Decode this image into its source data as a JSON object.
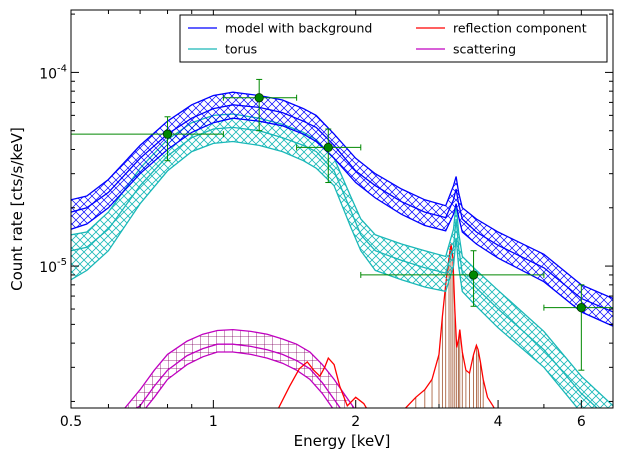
{
  "chart_data": {
    "type": "line",
    "title": "",
    "xlabel": "Energy [keV]",
    "ylabel": "Count rate [cts/s/keV]",
    "xscale": "log",
    "yscale": "log",
    "xlim": [
      0.5,
      7.0
    ],
    "ylim": [
      1.85e-06,
      0.00021
    ],
    "x_ticks": [
      {
        "value": 0.5,
        "label": "0.5"
      },
      {
        "value": 1,
        "label": "1"
      },
      {
        "value": 2,
        "label": "2"
      },
      {
        "value": 4,
        "label": "4"
      },
      {
        "value": 6,
        "label": "6"
      }
    ],
    "y_ticks": [
      {
        "value": 1e-05,
        "base": "10",
        "exp": "-5"
      },
      {
        "value": 0.0001,
        "base": "10",
        "exp": "-4"
      }
    ],
    "grid": false,
    "legend_position": "top-right",
    "legend_columns": 2,
    "series": [
      {
        "name": "model with background",
        "color": "#0000ff",
        "style": "hatched-band",
        "x": [
          0.5,
          0.54,
          0.6,
          0.7,
          0.8,
          0.9,
          1.0,
          1.1,
          1.25,
          1.4,
          1.55,
          1.65,
          1.8,
          2.0,
          2.2,
          2.5,
          2.8,
          3.1,
          3.22,
          3.26,
          3.3,
          3.36,
          3.6,
          4.0,
          5.0,
          6.0,
          7.0
        ],
        "upper": [
          2.2e-05,
          2.3e-05,
          2.8e-05,
          4.2e-05,
          5.6e-05,
          6.8e-05,
          7.6e-05,
          7.9e-05,
          7.6e-05,
          7.2e-05,
          6.5e-05,
          6e-05,
          4.8e-05,
          3.6e-05,
          3e-05,
          2.5e-05,
          2.2e-05,
          2.05e-05,
          2.6e-05,
          2.9e-05,
          2.4e-05,
          2e-05,
          1.75e-05,
          1.5e-05,
          1.15e-05,
          8e-06,
          6.8e-06
        ],
        "mid": [
          1.9e-05,
          2e-05,
          2.4e-05,
          3.6e-05,
          4.8e-05,
          5.8e-05,
          6.5e-05,
          6.8e-05,
          6.6e-05,
          6.2e-05,
          5.6e-05,
          5.2e-05,
          4.2e-05,
          3.1e-05,
          2.6e-05,
          2.15e-05,
          1.9e-05,
          1.78e-05,
          2.2e-05,
          2.5e-05,
          2.1e-05,
          1.75e-05,
          1.5e-05,
          1.28e-05,
          9.8e-06,
          6.8e-06,
          5.8e-06
        ],
        "lower": [
          1.55e-05,
          1.65e-05,
          2e-05,
          3e-05,
          4e-05,
          4.9e-05,
          5.5e-05,
          5.8e-05,
          5.6e-05,
          5.3e-05,
          4.8e-05,
          4.4e-05,
          3.6e-05,
          2.7e-05,
          2.25e-05,
          1.85e-05,
          1.62e-05,
          1.52e-05,
          1.85e-05,
          2.1e-05,
          1.8e-05,
          1.5e-05,
          1.3e-05,
          1.1e-05,
          8.3e-06,
          5.8e-06,
          4.9e-06
        ]
      },
      {
        "name": "torus",
        "color": "#1ab8b8",
        "style": "hatched-band",
        "x": [
          0.5,
          0.54,
          0.6,
          0.7,
          0.8,
          0.9,
          1.0,
          1.1,
          1.25,
          1.4,
          1.55,
          1.65,
          1.8,
          1.95,
          2.05,
          2.2,
          2.5,
          2.8,
          3.1,
          3.22,
          3.26,
          3.3,
          3.36,
          3.6,
          4.0,
          5.0,
          6.0,
          7.0
        ],
        "upper": [
          1.45e-05,
          1.5e-05,
          1.9e-05,
          3.2e-05,
          4.5e-05,
          5.5e-05,
          6e-05,
          6.1e-05,
          5.8e-05,
          5.4e-05,
          4.9e-05,
          4.5e-05,
          3.6e-05,
          2.3e-05,
          1.75e-05,
          1.45e-05,
          1.3e-05,
          1.2e-05,
          1.12e-05,
          1.55e-05,
          2.1e-05,
          1.5e-05,
          1.12e-05,
          9.5e-06,
          7.5e-06,
          4.6e-06,
          2.7e-06,
          1.9e-06
        ],
        "mid": [
          1.2e-05,
          1.25e-05,
          1.55e-05,
          2.6e-05,
          3.7e-05,
          4.6e-05,
          5.1e-05,
          5.2e-05,
          5e-05,
          4.6e-05,
          4.2e-05,
          3.9e-05,
          3.1e-05,
          1.95e-05,
          1.45e-05,
          1.2e-05,
          1.07e-05,
          9.8e-06,
          9.2e-06,
          1.25e-05,
          1.75e-05,
          1.25e-05,
          9.2e-06,
          7.7e-06,
          6e-06,
          3.7e-06,
          2.2e-06,
          1.55e-06
        ],
        "lower": [
          8.5e-06,
          9.5e-06,
          1.2e-05,
          2.1e-05,
          3.1e-05,
          3.9e-05,
          4.3e-05,
          4.4e-05,
          4.2e-05,
          3.9e-05,
          3.5e-05,
          3.2e-05,
          2.6e-05,
          1.6e-05,
          1.2e-05,
          9.5e-06,
          8.5e-06,
          7.8e-06,
          7.4e-06,
          1e-05,
          1.4e-05,
          1e-05,
          7.4e-06,
          6.2e-06,
          4.8e-06,
          3e-06,
          1.75e-06,
          1.25e-06
        ]
      },
      {
        "name": "reflection component",
        "color": "#ff0000",
        "style": "line",
        "x": [
          1.35,
          1.45,
          1.52,
          1.58,
          1.63,
          1.68,
          1.72,
          1.75,
          1.8,
          1.85,
          1.92,
          2.0,
          2.08,
          2.15,
          2.22,
          2.3,
          2.42,
          2.55,
          2.68,
          2.8,
          2.9,
          3.0,
          3.05,
          3.1,
          3.15,
          3.18,
          3.21,
          3.24,
          3.27,
          3.3,
          3.32,
          3.36,
          3.42,
          3.48,
          3.55,
          3.6,
          3.63,
          3.67,
          3.72,
          3.8,
          3.9,
          4.0
        ],
        "y": [
          1.7e-06,
          2.4e-06,
          2.95e-06,
          3.2e-06,
          2.9e-06,
          2.7e-06,
          3e-06,
          3.35e-06,
          3.1e-06,
          2.4e-06,
          1.9e-06,
          2.1e-06,
          1.95e-06,
          1.7e-06,
          1.55e-06,
          1.6e-06,
          1.7e-06,
          1.85e-06,
          2.1e-06,
          2.3e-06,
          2.6e-06,
          3.5e-06,
          5.5e-06,
          8e-06,
          1.1e-05,
          1.3e-05,
          1.1e-05,
          6e-06,
          3.8e-06,
          4.2e-06,
          4.7e-06,
          3.6e-06,
          2.9e-06,
          2.8e-06,
          3.5e-06,
          3.9e-06,
          3.7e-06,
          3.2e-06,
          2.6e-06,
          2.1e-06,
          1.9e-06,
          1.7e-06
        ]
      },
      {
        "name": "scattering",
        "color": "#c000c0",
        "style": "hatched-band",
        "x": [
          0.65,
          0.7,
          0.75,
          0.8,
          0.88,
          0.95,
          1.02,
          1.1,
          1.2,
          1.3,
          1.4,
          1.5,
          1.6,
          1.7,
          1.8,
          1.9,
          2.0
        ],
        "upper": [
          1.85e-06,
          2.3e-06,
          2.9e-06,
          3.5e-06,
          4.1e-06,
          4.45e-06,
          4.65e-06,
          4.7e-06,
          4.6e-06,
          4.45e-06,
          4.2e-06,
          3.95e-06,
          3.6e-06,
          3.1e-06,
          2.6e-06,
          2.15e-06,
          1.8e-06
        ],
        "mid": [
          1.7e-06,
          1.9e-06,
          2.4e-06,
          2.9e-06,
          3.45e-06,
          3.75e-06,
          3.95e-06,
          3.95e-06,
          3.85e-06,
          3.7e-06,
          3.5e-06,
          3.25e-06,
          2.95e-06,
          2.5e-06,
          2.05e-06,
          1.7e-06,
          1.5e-06
        ],
        "lower": [
          1.5e-06,
          1.7e-06,
          2.1e-06,
          2.6e-06,
          3.1e-06,
          3.4e-06,
          3.6e-06,
          3.6e-06,
          3.5e-06,
          3.35e-06,
          3.15e-06,
          2.9e-06,
          2.6e-06,
          2.2e-06,
          1.8e-06,
          1.5e-06,
          1.3e-06
        ]
      }
    ],
    "data_points": {
      "color": "#008800",
      "points": [
        {
          "x": 0.8,
          "y": 4.8e-05,
          "xlo": 0.5,
          "xhi": 1.05,
          "ylo": 3.5e-05,
          "yhi": 5.9e-05
        },
        {
          "x": 1.25,
          "y": 7.4e-05,
          "xlo": 1.05,
          "xhi": 1.5,
          "ylo": 5e-05,
          "yhi": 9.2e-05
        },
        {
          "x": 1.75,
          "y": 4.1e-05,
          "xlo": 1.5,
          "xhi": 2.05,
          "ylo": 2.7e-05,
          "yhi": 5.1e-05
        },
        {
          "x": 3.55,
          "y": 9e-06,
          "xlo": 2.05,
          "xhi": 5.0,
          "ylo": 6.2e-06,
          "yhi": 1.2e-05
        },
        {
          "x": 6.0,
          "y": 6.1e-06,
          "xlo": 5.0,
          "xhi": 7.0,
          "ylo": 2.9e-06,
          "yhi": 8e-06
        }
      ]
    }
  }
}
